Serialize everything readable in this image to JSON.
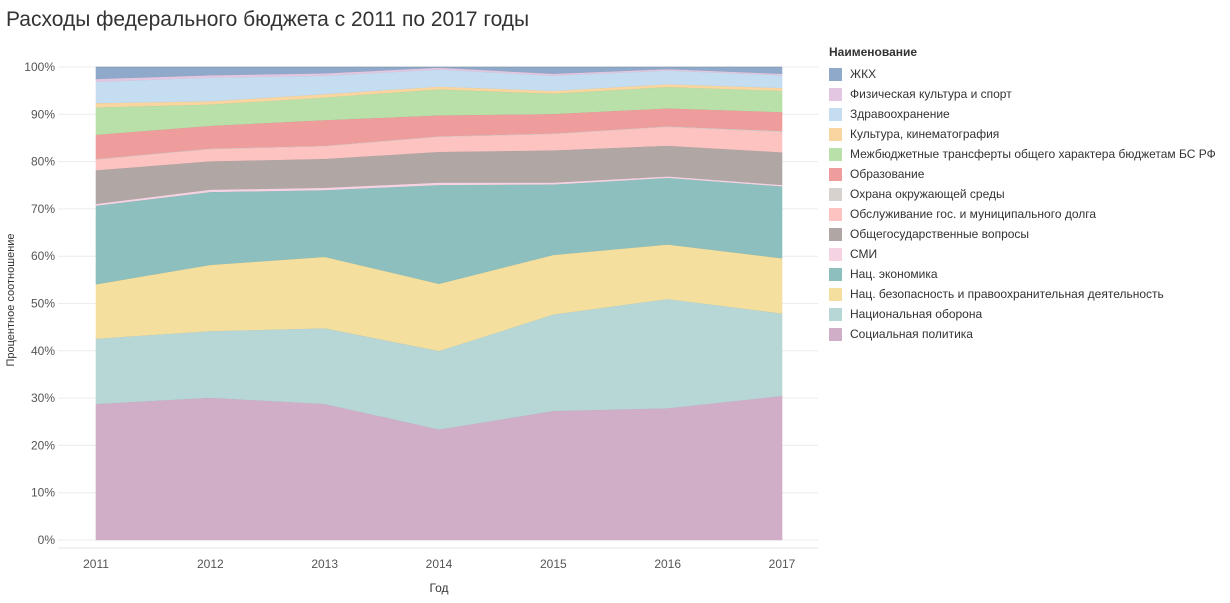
{
  "title": "Расходы федерального бюджета с 2011 по 2017 годы",
  "legend_title": "Наименование",
  "chart_data": {
    "type": "area",
    "stacked": true,
    "normalized": true,
    "x": [
      "2011",
      "2012",
      "2013",
      "2014",
      "2015",
      "2016",
      "2017"
    ],
    "xlabel": "Год",
    "ylabel": "Процентное соотношение",
    "ylim": [
      0,
      100
    ],
    "yticks": [
      "0%",
      "10%",
      "20%",
      "30%",
      "40%",
      "50%",
      "60%",
      "70%",
      "80%",
      "90%",
      "100%"
    ],
    "ytick_values": [
      0,
      10,
      20,
      30,
      40,
      50,
      60,
      70,
      80,
      90,
      100
    ],
    "grid": true,
    "legend_position": "right",
    "series": [
      {
        "name": "Социальная политика",
        "color": "#d0aec8",
        "values": [
          28.8,
          30.1,
          28.8,
          23.4,
          27.3,
          27.9,
          30.5
        ]
      },
      {
        "name": "Национальная оборона",
        "color": "#b6d7d5",
        "values": [
          13.8,
          14.1,
          16.0,
          16.6,
          20.4,
          23.1,
          17.4
        ]
      },
      {
        "name": "Нац. безопасность и правоохранительная деятельность",
        "color": "#f5df9e",
        "values": [
          11.5,
          14.0,
          15.1,
          14.2,
          12.6,
          11.5,
          11.7
        ]
      },
      {
        "name": "Нац. экономика",
        "color": "#8cbfbd",
        "values": [
          16.6,
          15.4,
          14.1,
          20.9,
          14.9,
          14.1,
          15.2
        ]
      },
      {
        "name": "СМИ",
        "color": "#f6d3e2",
        "values": [
          0.4,
          0.5,
          0.5,
          0.5,
          0.4,
          0.3,
          0.3
        ]
      },
      {
        "name": "Общегосударственные вопросы",
        "color": "#b0a6a4",
        "values": [
          7.1,
          6.0,
          6.1,
          6.5,
          6.8,
          6.5,
          6.9
        ]
      },
      {
        "name": "Обслуживание гос. и муниципального долга",
        "color": "#fcc3c1",
        "values": [
          2.3,
          2.6,
          2.7,
          3.2,
          3.5,
          4.0,
          4.3
        ]
      },
      {
        "name": "Охрана окружающей среды",
        "color": "#d8d2ce",
        "values": [
          0.1,
          0.1,
          0.1,
          0.1,
          0.1,
          0.1,
          0.2
        ]
      },
      {
        "name": "Образование",
        "color": "#ee9c9c",
        "values": [
          5.1,
          4.8,
          5.4,
          4.4,
          4.1,
          3.8,
          4.0
        ]
      },
      {
        "name": "Межбюджетные трансферты общего характера бюджетам БС РФ",
        "color": "#b8e0a8",
        "values": [
          5.8,
          4.5,
          4.8,
          5.5,
          4.3,
          4.5,
          4.5
        ]
      },
      {
        "name": "Культура, кинематография",
        "color": "#f9d5a0",
        "values": [
          0.9,
          0.7,
          0.7,
          0.6,
          0.6,
          0.6,
          0.6
        ]
      },
      {
        "name": "Здравоохранение",
        "color": "#c5ddf0",
        "values": [
          4.5,
          5.0,
          3.9,
          3.6,
          3.2,
          2.9,
          2.7
        ]
      },
      {
        "name": "Физическая культура и спорт",
        "color": "#e3c6e1",
        "values": [
          0.6,
          0.5,
          0.5,
          0.4,
          0.4,
          0.3,
          0.3
        ]
      },
      {
        "name": "ЖКХ",
        "color": "#8ea9c9",
        "values": [
          2.5,
          1.7,
          1.3,
          0.1,
          1.4,
          0.4,
          1.4
        ]
      }
    ]
  }
}
